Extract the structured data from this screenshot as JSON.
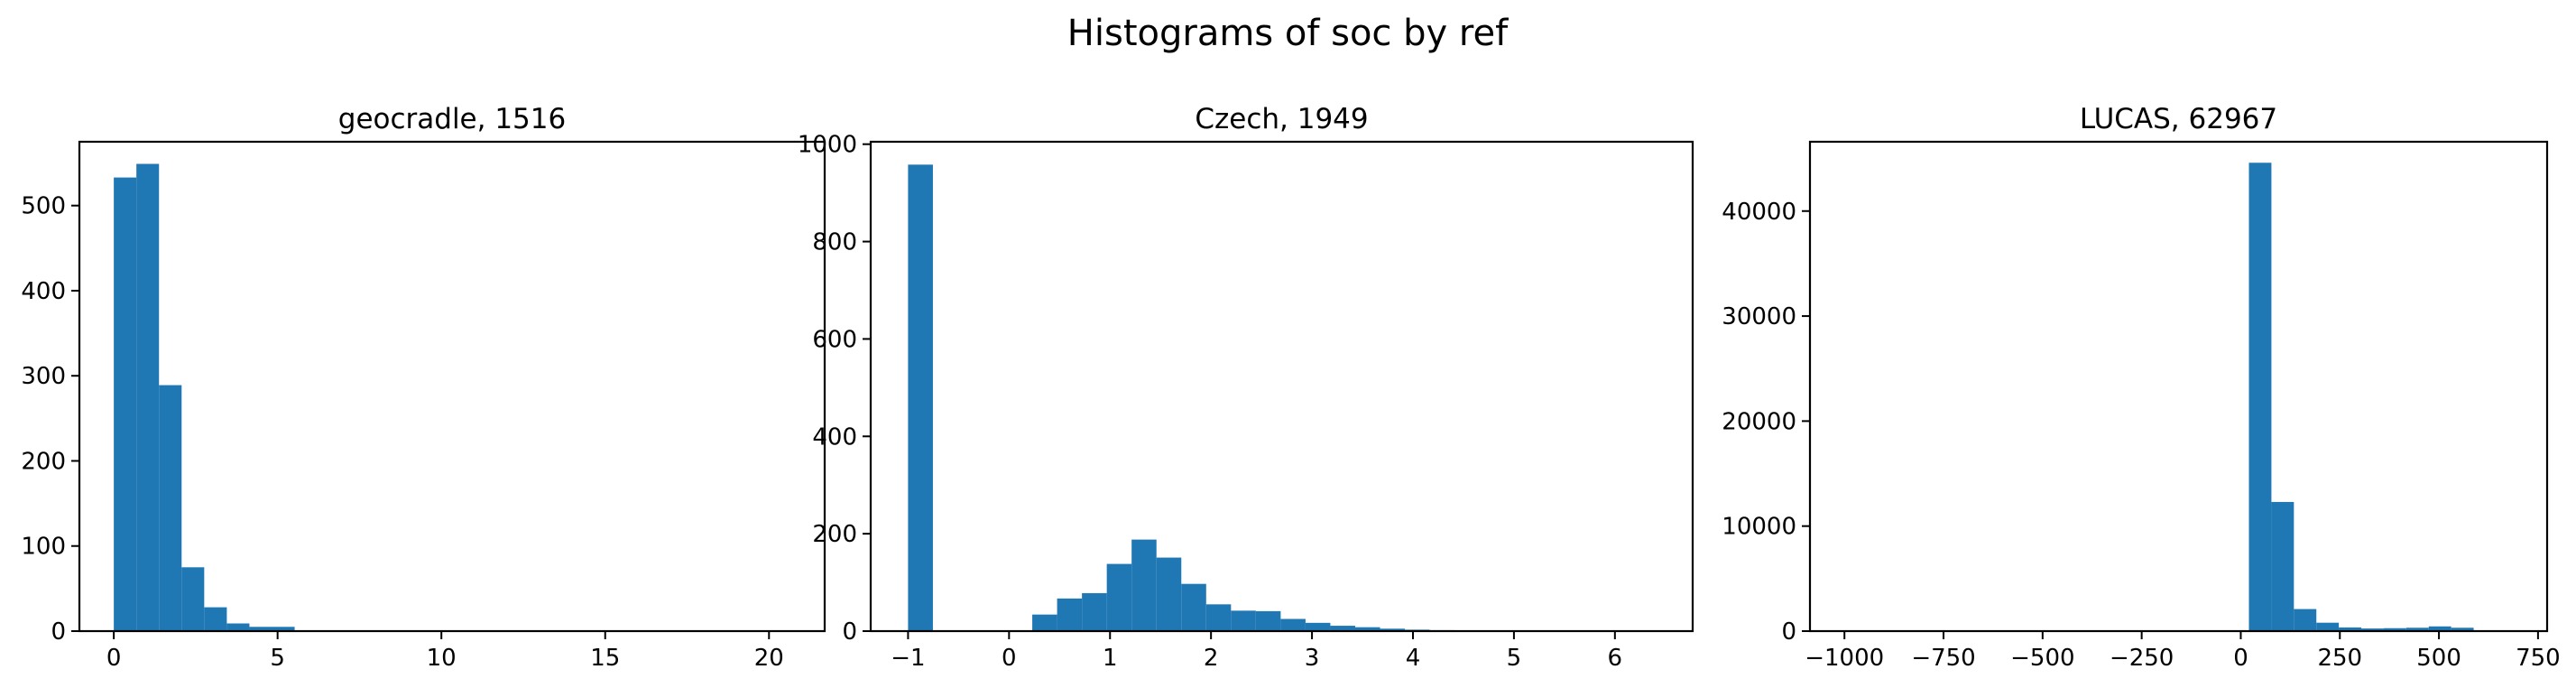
{
  "figure": {
    "suptitle": "Histograms of soc by ref"
  },
  "chart_data": [
    {
      "type": "bar",
      "title": "geocradle, 1516",
      "xlabel": "",
      "ylabel": "",
      "xlim": [
        -1.05,
        21.7
      ],
      "ylim": [
        0,
        575
      ],
      "xticks": [
        0,
        5,
        10,
        15,
        20
      ],
      "xtick_labels": [
        "0",
        "5",
        "10",
        "15",
        "20"
      ],
      "yticks": [
        0,
        100,
        200,
        300,
        400,
        500
      ],
      "ytick_labels": [
        "0",
        "100",
        "200",
        "300",
        "400",
        "500"
      ],
      "bin_start": 0,
      "bin_width": 0.69,
      "values": [
        533,
        549,
        289,
        75,
        28,
        9,
        5,
        5,
        0,
        1,
        0,
        0,
        0,
        0,
        0,
        0,
        0,
        0,
        0,
        0,
        0,
        0,
        0,
        0,
        0,
        0,
        0,
        0,
        0,
        1
      ],
      "color": "#1f77b4"
    },
    {
      "type": "bar",
      "title": "Czech, 1949",
      "xlabel": "",
      "ylabel": "",
      "xlim": [
        -1.37,
        6.77
      ],
      "ylim": [
        0,
        1005
      ],
      "xticks": [
        -1,
        0,
        1,
        2,
        3,
        4,
        5,
        6
      ],
      "xtick_labels": [
        "−1",
        "0",
        "1",
        "2",
        "3",
        "4",
        "5",
        "6"
      ],
      "yticks": [
        0,
        200,
        400,
        600,
        800,
        1000
      ],
      "ytick_labels": [
        "0",
        "200",
        "400",
        "600",
        "800",
        "1000"
      ],
      "bin_start": -1,
      "bin_width": 0.246,
      "values": [
        958,
        0,
        0,
        0,
        0,
        34,
        67,
        78,
        138,
        188,
        151,
        97,
        55,
        42,
        41,
        25,
        17,
        11,
        8,
        5,
        3,
        2,
        1,
        1,
        0,
        0,
        0,
        0,
        0,
        1
      ],
      "color": "#1f77b4"
    },
    {
      "type": "bar",
      "title": "LUCAS, 62967",
      "xlabel": "",
      "ylabel": "",
      "xlim": [
        -1087,
        773
      ],
      "ylim": [
        0,
        46600
      ],
      "xticks": [
        -1000,
        -750,
        -500,
        -250,
        0,
        250,
        500,
        750
      ],
      "xtick_labels": [
        "−1000",
        "−750",
        "−500",
        "−250",
        "0",
        "250",
        "500",
        "750"
      ],
      "yticks": [
        0,
        10000,
        20000,
        30000,
        40000
      ],
      "ytick_labels": [
        "0",
        "10000",
        "20000",
        "30000",
        "40000"
      ],
      "bin_start": -1000,
      "bin_width": 56.7,
      "values": [
        5,
        0,
        0,
        0,
        0,
        0,
        0,
        0,
        0,
        0,
        0,
        0,
        0,
        0,
        0,
        0,
        0,
        0,
        44600,
        12300,
        2100,
        800,
        350,
        250,
        280,
        320,
        450,
        320,
        5,
        5
      ],
      "color": "#1f77b4"
    }
  ]
}
